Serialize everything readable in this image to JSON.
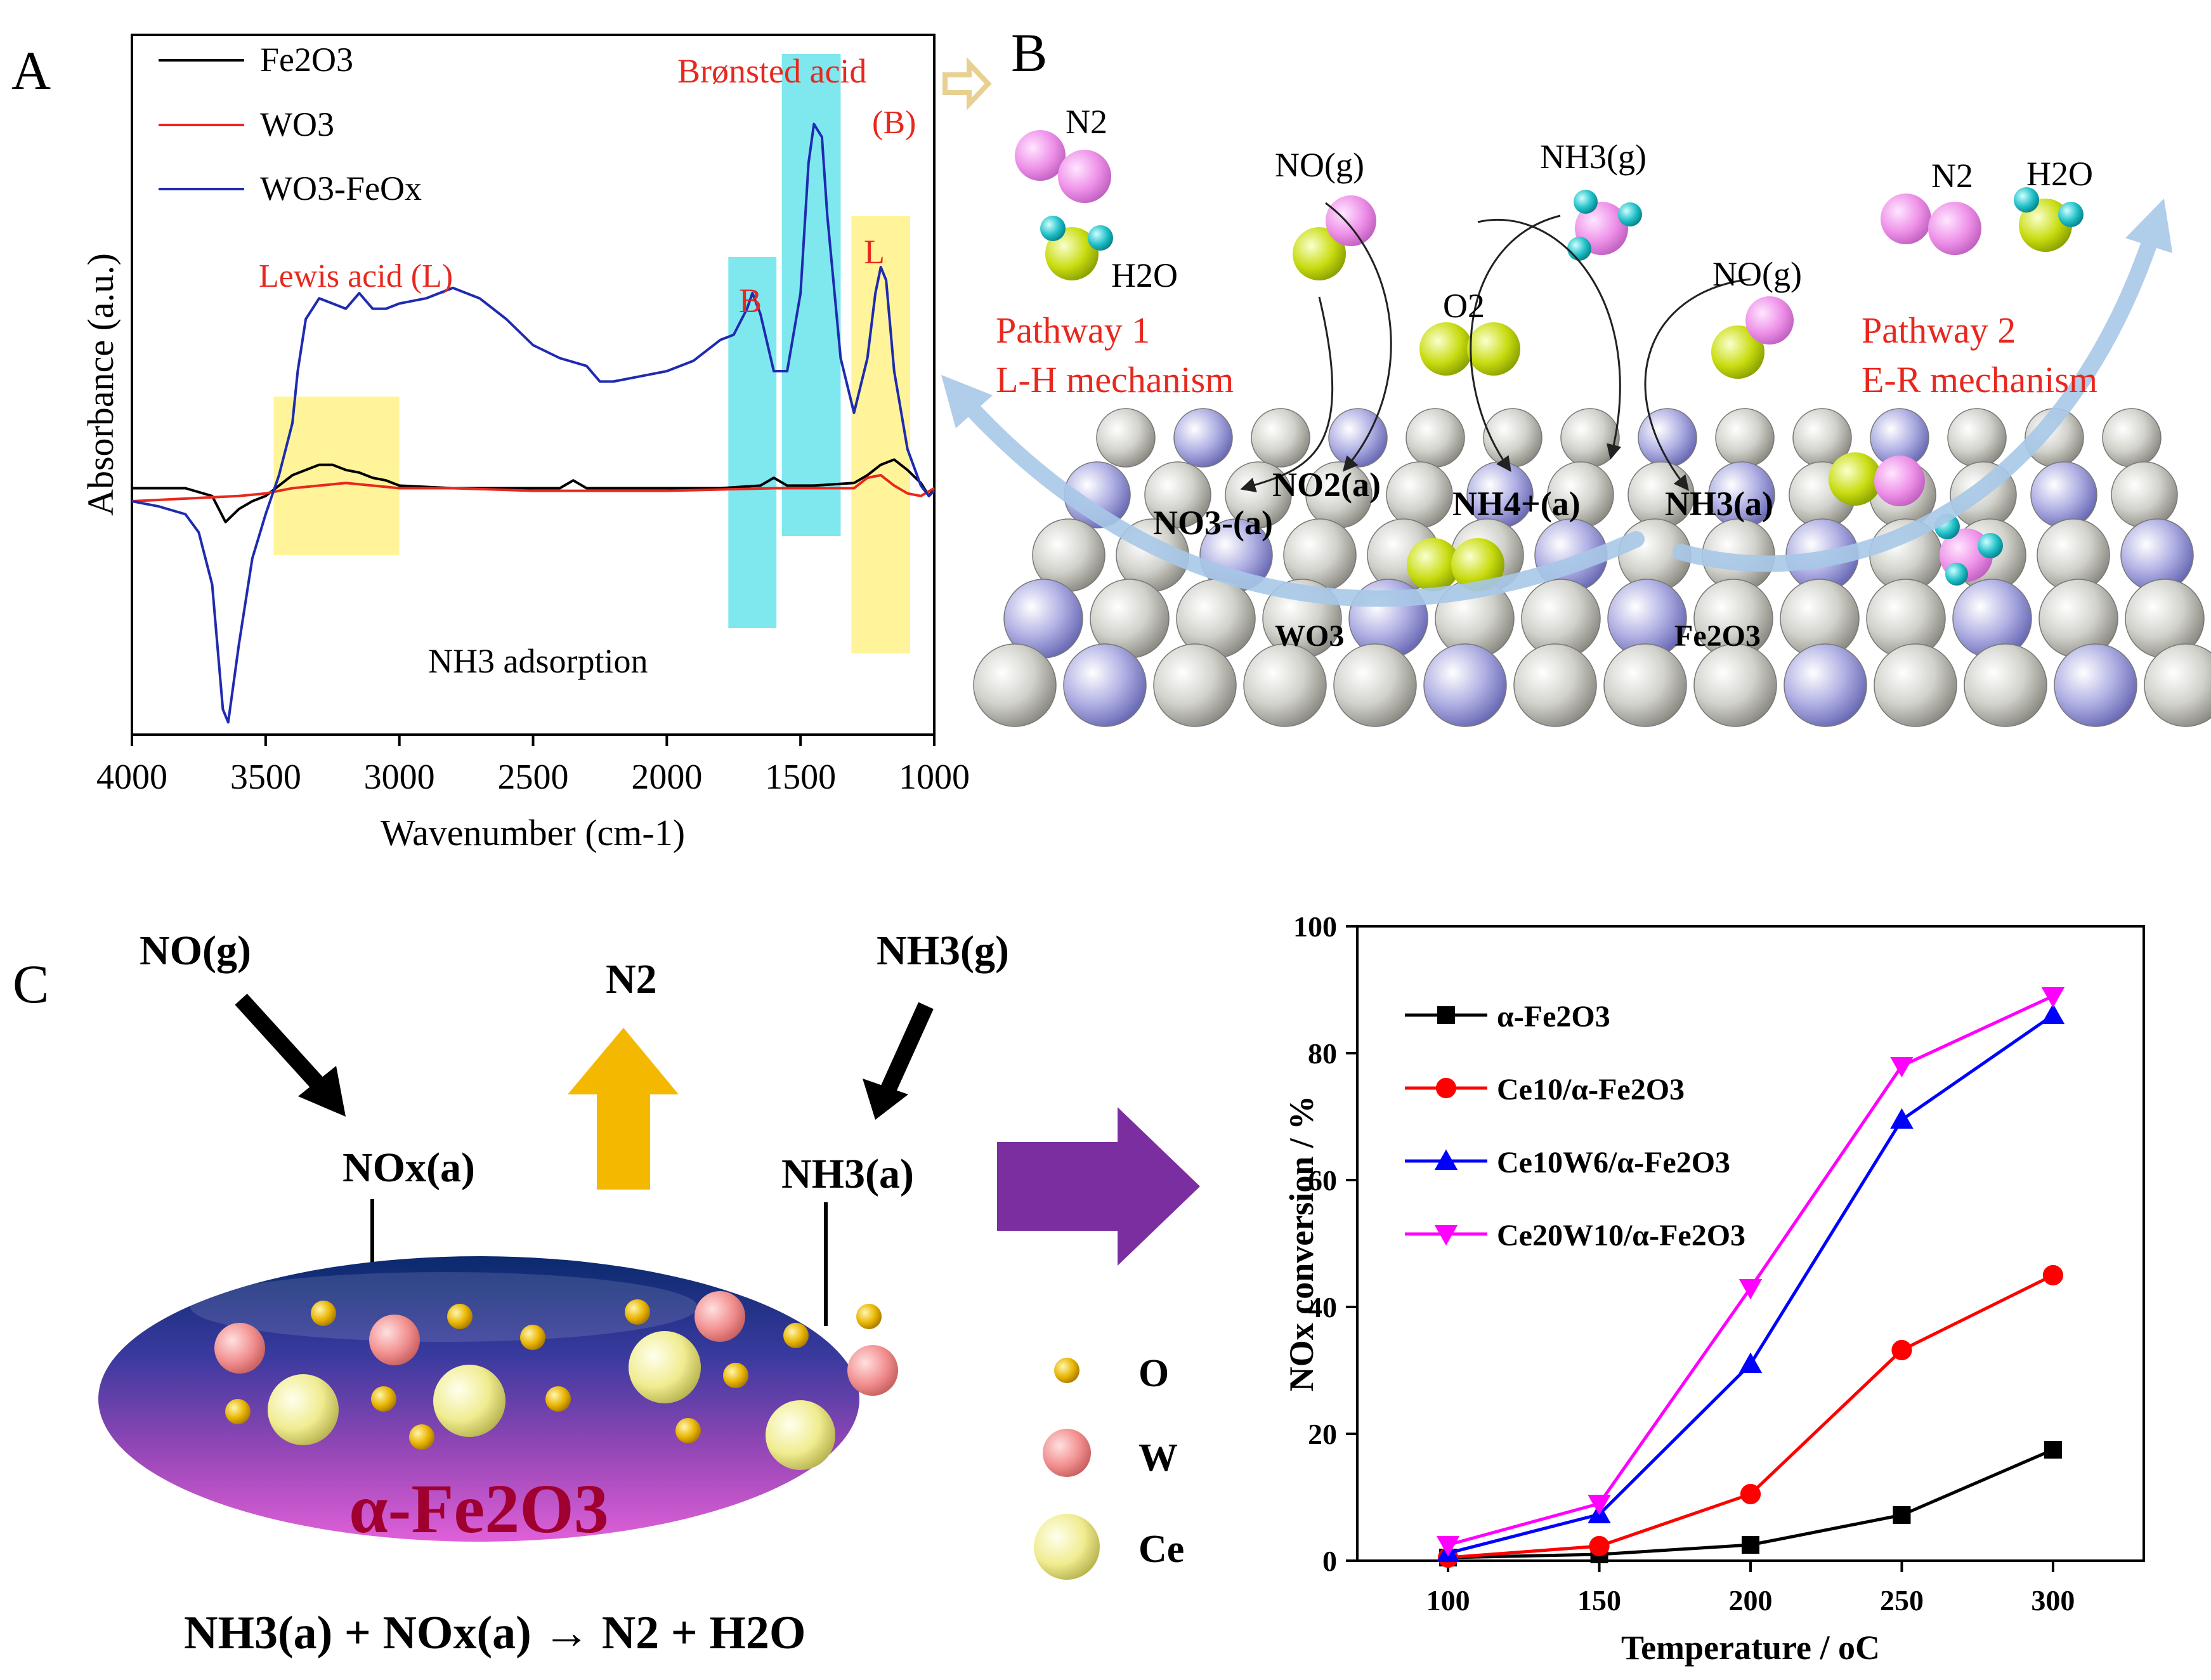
{
  "panels": {
    "A": {
      "label": "A"
    },
    "B": {
      "label": "B"
    },
    "C": {
      "label": "C"
    }
  },
  "chart_data": [
    {
      "type": "line",
      "panel": "A",
      "title": "",
      "xlabel": "Wavenumber (cm-1)",
      "ylabel": "Absorbance (a.u.)",
      "xlim": [
        4000,
        1000
      ],
      "x_ticks": [
        "4000",
        "3500",
        "3000",
        "2500",
        "2000",
        "1500",
        "1000"
      ],
      "legend": [
        {
          "name": "Fe2O3",
          "color": "#000000"
        },
        {
          "name": "WO3",
          "color": "#e8281e"
        },
        {
          "name": "WO3-FeOx",
          "color": "#1f2bb0"
        }
      ],
      "series": [
        {
          "name": "Fe2O3",
          "x": [
            4000,
            3800,
            3700,
            3650,
            3600,
            3550,
            3500,
            3450,
            3400,
            3350,
            3300,
            3250,
            3200,
            3150,
            3100,
            3050,
            3000,
            2800,
            2600,
            2400,
            2350,
            2300,
            2200,
            2000,
            1800,
            1650,
            1600,
            1550,
            1450,
            1300,
            1250,
            1200,
            1150,
            1100,
            1050,
            1020,
            1000
          ],
          "y": [
            0.05,
            0.05,
            0.02,
            -0.08,
            -0.03,
            0.0,
            0.02,
            0.06,
            0.1,
            0.12,
            0.14,
            0.14,
            0.12,
            0.11,
            0.09,
            0.08,
            0.06,
            0.05,
            0.05,
            0.05,
            0.08,
            0.05,
            0.05,
            0.05,
            0.05,
            0.06,
            0.09,
            0.06,
            0.06,
            0.07,
            0.1,
            0.14,
            0.16,
            0.12,
            0.07,
            0.02,
            0.05
          ]
        },
        {
          "name": "WO3",
          "x": [
            4000,
            3800,
            3600,
            3500,
            3400,
            3300,
            3200,
            3100,
            3000,
            2800,
            2500,
            2000,
            1600,
            1300,
            1250,
            1200,
            1150,
            1100,
            1050,
            1000
          ],
          "y": [
            0.0,
            0.01,
            0.02,
            0.03,
            0.05,
            0.06,
            0.07,
            0.06,
            0.05,
            0.05,
            0.04,
            0.04,
            0.05,
            0.05,
            0.09,
            0.1,
            0.06,
            0.03,
            0.02,
            0.05
          ]
        },
        {
          "name": "WO3-FeOx",
          "x": [
            4000,
            3900,
            3800,
            3750,
            3700,
            3660,
            3640,
            3600,
            3550,
            3500,
            3450,
            3400,
            3380,
            3350,
            3300,
            3250,
            3200,
            3150,
            3100,
            3050,
            3000,
            2900,
            2800,
            2700,
            2600,
            2500,
            2400,
            2300,
            2250,
            2200,
            2100,
            2000,
            1900,
            1800,
            1750,
            1700,
            1680,
            1650,
            1600,
            1550,
            1500,
            1470,
            1450,
            1420,
            1400,
            1350,
            1300,
            1250,
            1220,
            1200,
            1180,
            1150,
            1100,
            1050,
            1020,
            1000
          ],
          "y": [
            0.0,
            -0.02,
            -0.05,
            -0.12,
            -0.32,
            -0.8,
            -0.85,
            -0.55,
            -0.22,
            -0.05,
            0.1,
            0.3,
            0.5,
            0.7,
            0.78,
            0.76,
            0.74,
            0.8,
            0.74,
            0.74,
            0.76,
            0.78,
            0.82,
            0.78,
            0.7,
            0.6,
            0.55,
            0.52,
            0.46,
            0.46,
            0.48,
            0.5,
            0.54,
            0.62,
            0.64,
            0.74,
            0.8,
            0.72,
            0.5,
            0.5,
            0.8,
            1.3,
            1.45,
            1.4,
            1.1,
            0.55,
            0.34,
            0.55,
            0.8,
            0.9,
            0.85,
            0.5,
            0.2,
            0.06,
            0.02,
            0.04
          ]
        }
      ],
      "annotations": [
        {
          "text": "Brønsted acid",
          "color": "#e8281e"
        },
        {
          "text": "(B)",
          "color": "#e8281e"
        },
        {
          "text": "Lewis acid (L)",
          "color": "#e8281e"
        },
        {
          "text": "B",
          "color": "#e8281e"
        },
        {
          "text": "L",
          "color": "#e8281e"
        },
        {
          "text": "NH3 adsorption",
          "color": "#000000"
        }
      ],
      "highlight_bands": [
        {
          "label": "Lewis acid (L)",
          "x_range": [
            3470,
            3000
          ],
          "color": "#fff49a"
        },
        {
          "label": "B",
          "x_range": [
            1770,
            1590
          ],
          "color": "#7fe8ef"
        },
        {
          "label": "Brønsted acid (B)",
          "x_range": [
            1570,
            1350
          ],
          "color": "#7fe8ef"
        },
        {
          "label": "L",
          "x_range": [
            1310,
            1090
          ],
          "color": "#fff49a"
        }
      ]
    },
    {
      "type": "line",
      "panel": "C",
      "title": "",
      "xlabel": "Temperature / oC",
      "ylabel": "NOx conversion / %",
      "xlim": [
        70,
        330
      ],
      "ylim": [
        0,
        100
      ],
      "x": [
        100,
        150,
        200,
        250,
        300
      ],
      "x_ticks": [
        "100",
        "150",
        "200",
        "250",
        "300"
      ],
      "y_ticks": [
        "0",
        "20",
        "40",
        "60",
        "80",
        "100"
      ],
      "series": [
        {
          "name": "α-Fe2O3",
          "marker": "square",
          "color": "#000000",
          "values": [
            0.5,
            1.0,
            2.5,
            7.2,
            17.5
          ]
        },
        {
          "name": "Ce10/α-Fe2O3",
          "marker": "circle",
          "color": "#ff0000",
          "values": [
            0.5,
            2.3,
            10.5,
            33.2,
            45.0
          ]
        },
        {
          "name": "Ce10W6/α-Fe2O3",
          "marker": "triangle-up",
          "color": "#0000ff",
          "values": [
            1.2,
            7.3,
            31.0,
            69.5,
            86.0
          ]
        },
        {
          "name": "Ce20W10/α-Fe2O3",
          "marker": "triangle-down",
          "color": "#ff00ff",
          "values": [
            2.5,
            9.0,
            43.0,
            78.0,
            89.0
          ]
        }
      ],
      "legend_position": "top-left"
    }
  ],
  "schematic_B": {
    "species": {
      "n2": "N2",
      "h2o": "H2O",
      "no_gas": "NO(g)",
      "nh3_gas": "NH3(g)",
      "o2": "O2"
    },
    "pathway1": {
      "line1": "Pathway 1",
      "line2": "L-H mechanism"
    },
    "pathway2": {
      "line1": "Pathway 2",
      "line2": "E-R mechanism"
    },
    "surface_species": {
      "no3": "NO3-(a)",
      "no2": "NO2(a)",
      "nh4": "NH4+(a)",
      "nh3": "NH3(a)"
    },
    "surface_labels": {
      "wo3": "WO3",
      "fe2o3": "Fe2O3"
    },
    "colors": {
      "red_text": "#e8281e",
      "n_atom": "#ee90e8",
      "o_atom": "#c8dc10",
      "h_atom": "#20c0c8",
      "arrow": "#a8c8e8"
    }
  },
  "schematic_C": {
    "no_gas": "NO(g)",
    "n2": "N2",
    "nh3_gas": "NH3(g)",
    "nox_ads": "NOx(a)",
    "nh3_ads": "NH3(a)",
    "support": "α-Fe2O3",
    "legend": [
      {
        "label": "O",
        "color": "#e0a800"
      },
      {
        "label": "W",
        "color": "#f08080"
      },
      {
        "label": "Ce",
        "color": "#f0ec90"
      }
    ],
    "reaction": "NH3(a) + NOx(a) → N2 + H2O",
    "colors": {
      "up_arrow": "#f5b800",
      "purple_arrow": "#7b2ea0",
      "reaction_arrow": "#e8281e"
    }
  }
}
